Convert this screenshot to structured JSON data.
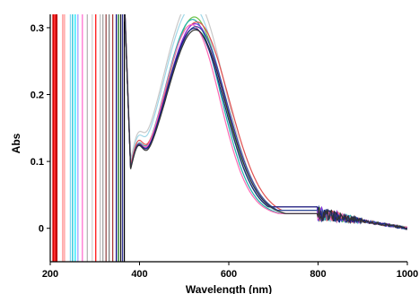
{
  "chart_data": {
    "type": "line",
    "title": "",
    "xlabel": "Wavelength (nm)",
    "ylabel": "Abs",
    "xlim": [
      200,
      1000
    ],
    "ylim": [
      -0.05,
      0.32
    ],
    "xticks": [
      200,
      400,
      600,
      800,
      1000
    ],
    "yticks": [
      0,
      0.1,
      0.2,
      0.3
    ],
    "grid": false,
    "legend": "none",
    "series": [
      {
        "color": "#c9c9c9",
        "peak_x": 522,
        "peak_y": 0.312,
        "band_width": 68
      },
      {
        "color": "#a0d8e8",
        "peak_x": 520,
        "peak_y": 0.298,
        "band_width": 66
      },
      {
        "color": "#6cc24a",
        "peak_x": 524,
        "peak_y": 0.283,
        "band_width": 64
      },
      {
        "color": "#20b2aa",
        "peak_x": 520,
        "peak_y": 0.279,
        "band_width": 63
      },
      {
        "color": "#e05050",
        "peak_x": 530,
        "peak_y": 0.276,
        "band_width": 70
      },
      {
        "color": "#8a2be2",
        "peak_x": 526,
        "peak_y": 0.273,
        "band_width": 66
      },
      {
        "color": "#ff69b4",
        "peak_x": 518,
        "peak_y": 0.271,
        "band_width": 62
      },
      {
        "color": "#2f4f9f",
        "peak_x": 528,
        "peak_y": 0.269,
        "band_width": 67
      },
      {
        "color": "#1a237e",
        "peak_x": 524,
        "peak_y": 0.266,
        "band_width": 65
      },
      {
        "color": "#333333",
        "peak_x": 527,
        "peak_y": 0.264,
        "band_width": 66
      }
    ],
    "uv_cutoff_lines": [
      {
        "x": 207,
        "color": "#d00000"
      },
      {
        "x": 210,
        "color": "#ff3030"
      },
      {
        "x": 214,
        "color": "#c00000"
      },
      {
        "x": 228,
        "color": "#ff7f7f"
      },
      {
        "x": 232,
        "color": "#ff9090"
      },
      {
        "x": 245,
        "color": "#7fd4f0"
      },
      {
        "x": 250,
        "color": "#00bcd4"
      },
      {
        "x": 256,
        "color": "#00e5ff"
      },
      {
        "x": 262,
        "color": "#9999ff"
      },
      {
        "x": 272,
        "color": "#ff66cc"
      },
      {
        "x": 283,
        "color": "#b0b0b0"
      },
      {
        "x": 294,
        "color": "#d0d0d0"
      },
      {
        "x": 302,
        "color": "#ff0000"
      },
      {
        "x": 312,
        "color": "#bbbbbb"
      },
      {
        "x": 318,
        "color": "#999999"
      },
      {
        "x": 325,
        "color": "#8b3a3a"
      },
      {
        "x": 332,
        "color": "#777777"
      },
      {
        "x": 340,
        "color": "#a52a2a"
      },
      {
        "x": 348,
        "color": "#000080"
      },
      {
        "x": 353,
        "color": "#006400"
      },
      {
        "x": 358,
        "color": "#111111"
      },
      {
        "x": 362,
        "color": "#333399"
      },
      {
        "x": 366,
        "color": "#000000"
      }
    ]
  }
}
